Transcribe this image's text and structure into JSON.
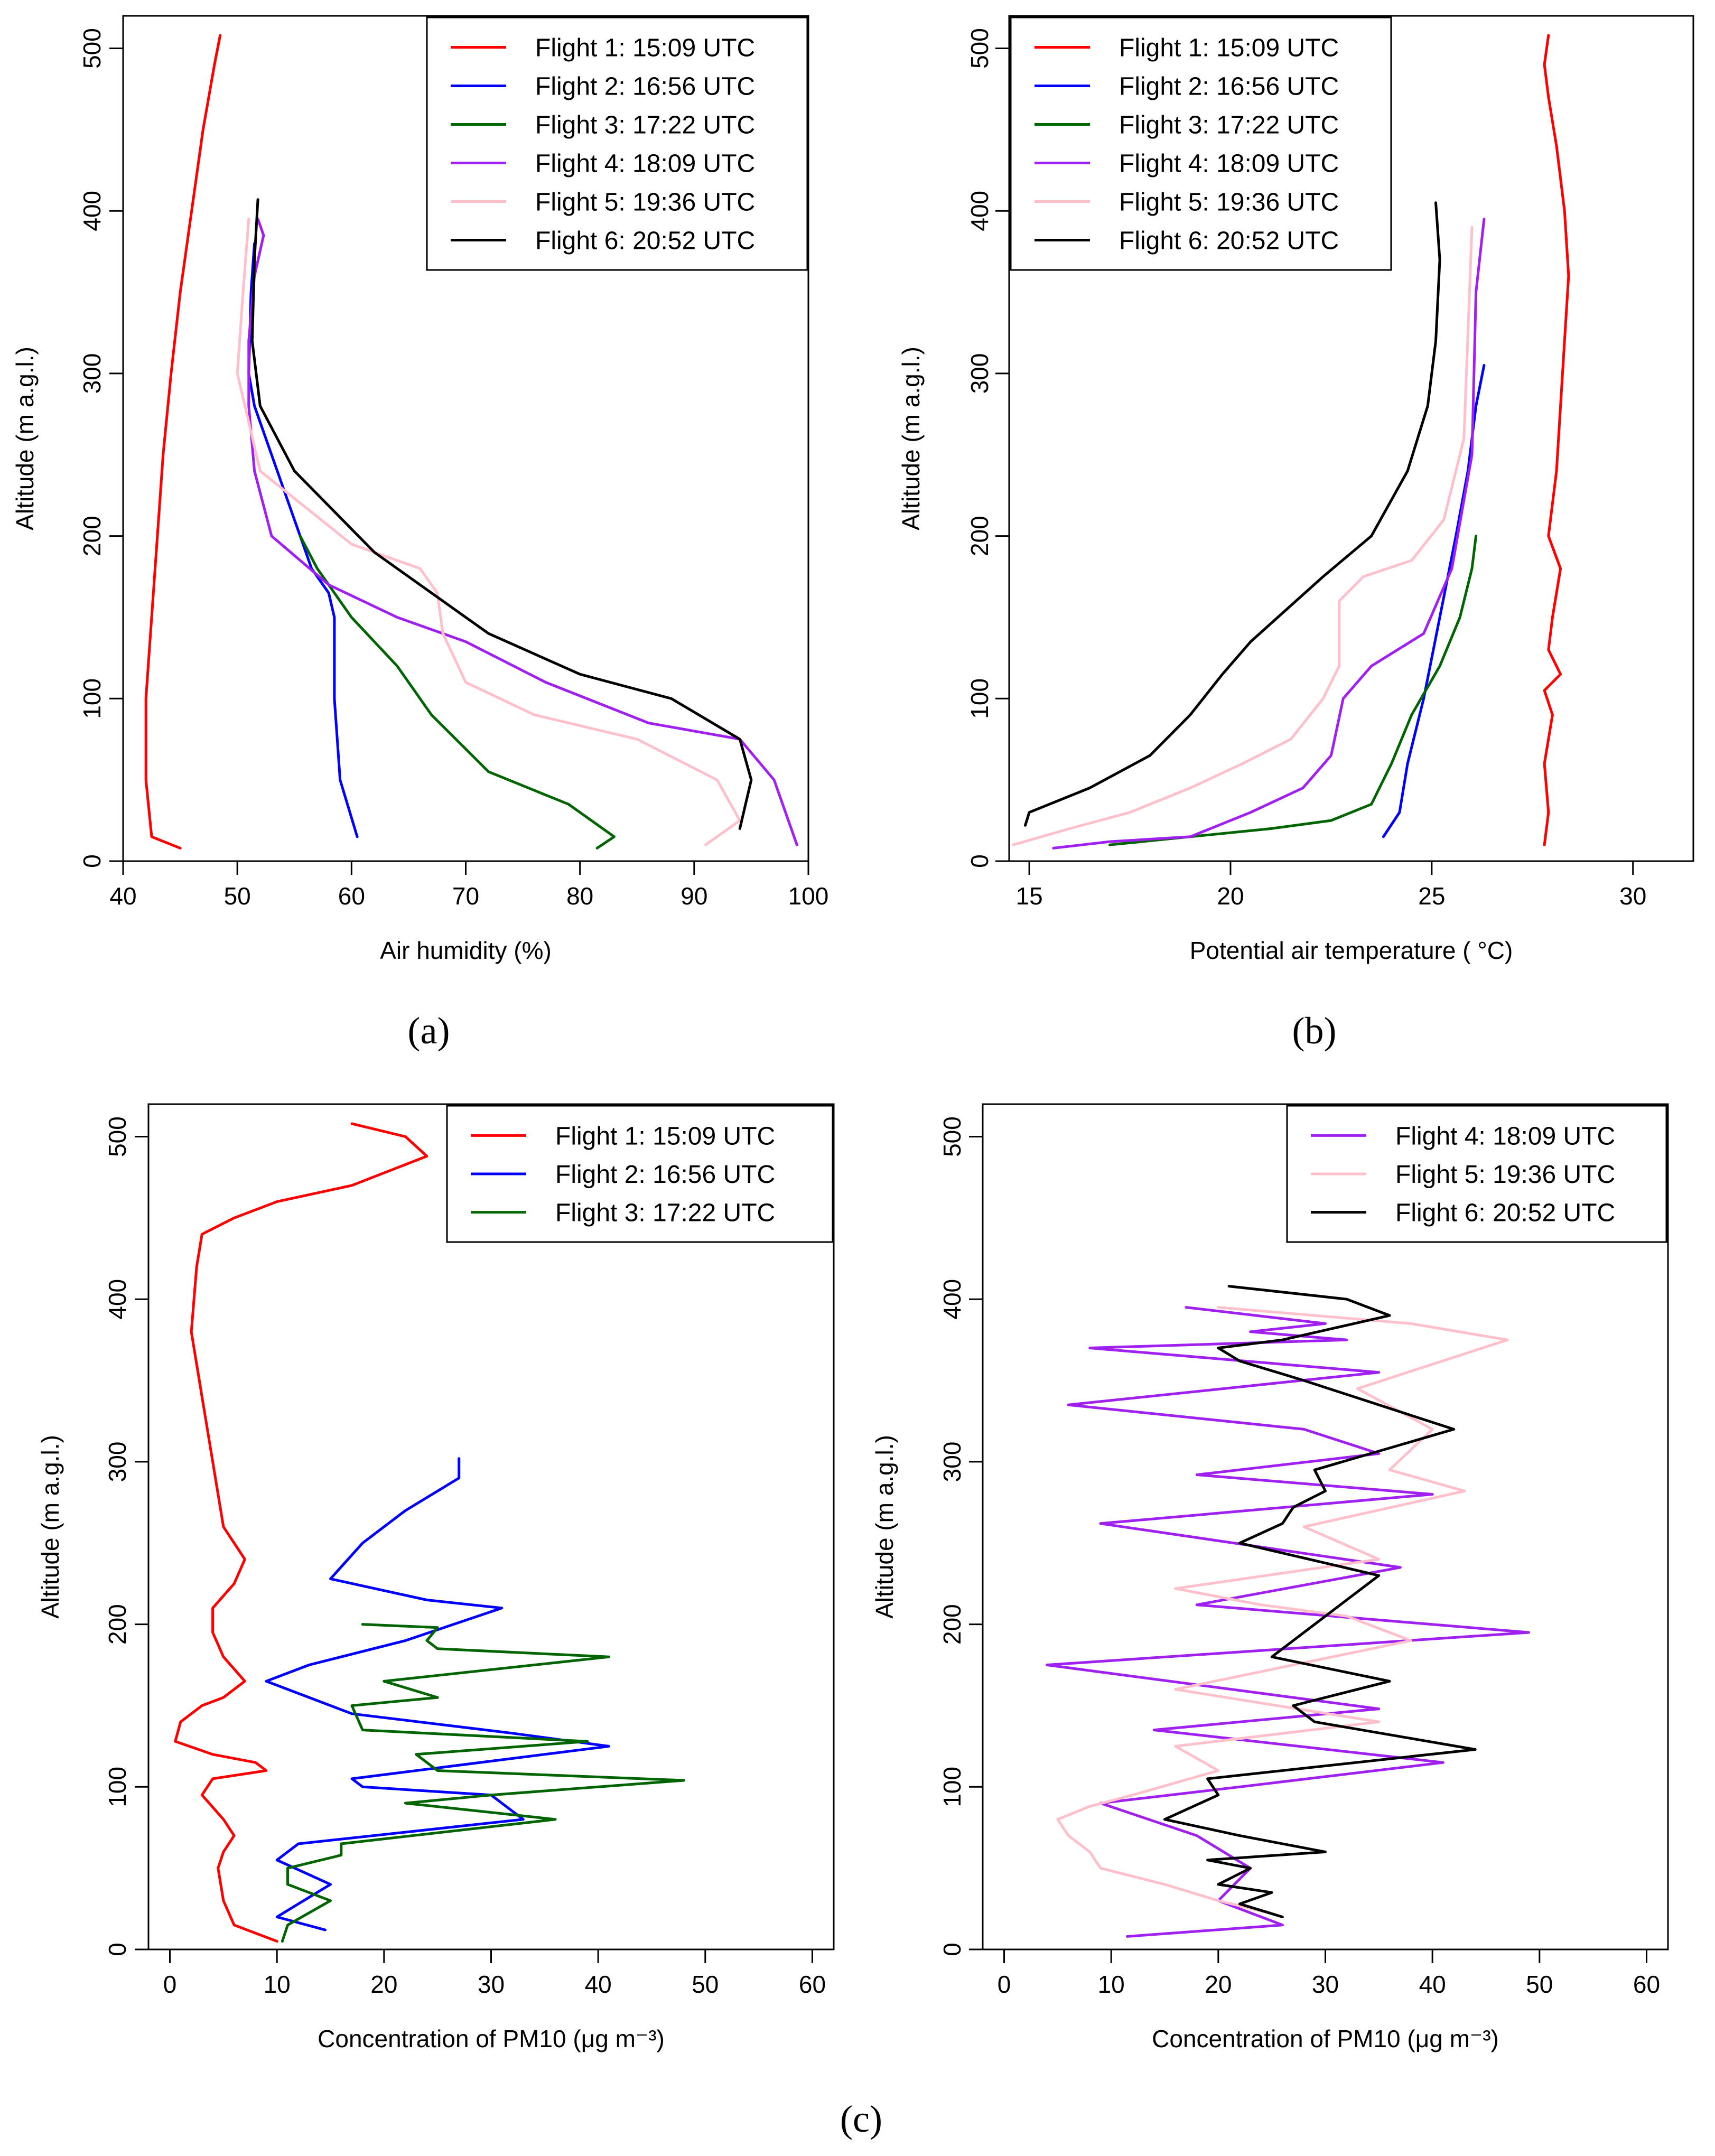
{
  "chart_data": [
    {
      "type": "line",
      "panel_label": "(a)",
      "title": "",
      "xlabel": "Air humidity (%)",
      "ylabel": "Altitude (m a.g.l.)",
      "xlim": [
        40,
        100
      ],
      "ylim": [
        0,
        520
      ],
      "xticks": [
        "40",
        "50",
        "60",
        "70",
        "80",
        "90",
        "100"
      ],
      "yticks": [
        "0",
        "100",
        "200",
        "300",
        "400",
        "500"
      ],
      "legend_position": "top-right",
      "series": [
        {
          "name": "Flight 1: 15:09 UTC",
          "color": "#ff0000",
          "x": [
            45,
            42.5,
            42,
            42,
            42.5,
            43,
            43.5,
            44.2,
            45,
            46,
            47,
            48,
            48.5
          ],
          "y": [
            8,
            15,
            50,
            100,
            150,
            200,
            250,
            300,
            350,
            400,
            450,
            490,
            508
          ]
        },
        {
          "name": "Flight 2: 16:56 UTC",
          "color": "#0000ff",
          "x": [
            60.5,
            59,
            58.5,
            58.5,
            58,
            56.5,
            55.5,
            54.5,
            53.5,
            52.5,
            51.5,
            51,
            51.2,
            51.5
          ],
          "y": [
            15,
            50,
            100,
            150,
            165,
            180,
            200,
            220,
            240,
            260,
            280,
            300,
            350,
            380
          ]
        },
        {
          "name": "Flight 3: 17:22 UTC",
          "color": "#006400",
          "x": [
            81.5,
            83,
            79,
            72,
            67,
            64,
            60,
            57,
            55.5
          ],
          "y": [
            8,
            15,
            35,
            55,
            90,
            120,
            150,
            180,
            200
          ]
        },
        {
          "name": "Flight 4: 18:09 UTC",
          "color": "#a020f0",
          "x": [
            99,
            97,
            94,
            86,
            77,
            70,
            64,
            58,
            53,
            51.5,
            51,
            51,
            51.5,
            52.3,
            51.8
          ],
          "y": [
            10,
            50,
            75,
            85,
            110,
            135,
            150,
            170,
            200,
            240,
            280,
            320,
            360,
            385,
            395
          ]
        },
        {
          "name": "Flight 5: 19:36 UTC",
          "color": "#ffc0cb",
          "x": [
            91,
            94,
            92,
            85,
            76,
            70,
            68,
            67.5,
            66,
            60,
            52,
            50,
            50.5,
            51
          ],
          "y": [
            10,
            25,
            50,
            75,
            90,
            110,
            140,
            165,
            180,
            195,
            240,
            300,
            350,
            395
          ]
        },
        {
          "name": "Flight 6: 20:52 UTC",
          "color": "#000000",
          "x": [
            94,
            95,
            94,
            88,
            80,
            72,
            67,
            62,
            55,
            52,
            51.3,
            51.5,
            51.8
          ],
          "y": [
            20,
            50,
            75,
            100,
            115,
            140,
            165,
            190,
            240,
            280,
            320,
            370,
            407
          ]
        }
      ]
    },
    {
      "type": "line",
      "panel_label": "(b)",
      "title": "",
      "xlabel": "Potential air temperature ( °C)",
      "ylabel": "Altitude (m a.g.l.)",
      "xlim": [
        14.5,
        31.5
      ],
      "ylim": [
        0,
        520
      ],
      "xticks": [
        "15",
        "20",
        "25",
        "30"
      ],
      "yticks": [
        "0",
        "100",
        "200",
        "300",
        "400",
        "500"
      ],
      "legend_position": "top-left",
      "series": [
        {
          "name": "Flight 1: 15:09 UTC",
          "color": "#ff0000",
          "x": [
            27.8,
            27.9,
            27.8,
            28,
            27.8,
            28.2,
            27.9,
            28,
            28.2,
            27.9,
            28.1,
            28.2,
            28.3,
            28.4,
            28.3,
            28.1,
            27.9,
            27.8,
            27.9
          ],
          "y": [
            10,
            30,
            60,
            90,
            105,
            115,
            130,
            150,
            180,
            200,
            240,
            280,
            320,
            360,
            400,
            440,
            470,
            490,
            508
          ]
        },
        {
          "name": "Flight 2: 16:56 UTC",
          "color": "#0000ff",
          "x": [
            23.8,
            24.2,
            24.4,
            24.8,
            25.2,
            25.6,
            25.9,
            26.1,
            26.3
          ],
          "y": [
            15,
            30,
            60,
            100,
            150,
            200,
            240,
            280,
            305
          ]
        },
        {
          "name": "Flight 3: 17:22 UTC",
          "color": "#006400",
          "x": [
            17,
            19,
            21,
            22.5,
            23.5,
            24,
            24.5,
            25.2,
            25.7,
            26,
            26.1
          ],
          "y": [
            10,
            15,
            20,
            25,
            35,
            60,
            90,
            120,
            150,
            180,
            200
          ]
        },
        {
          "name": "Flight 4: 18:09 UTC",
          "color": "#a020f0",
          "x": [
            15.6,
            17,
            19,
            20.5,
            21.8,
            22.5,
            22.8,
            23.5,
            24.8,
            25.5,
            26,
            26.1,
            26.3
          ],
          "y": [
            8,
            12,
            15,
            30,
            45,
            65,
            100,
            120,
            140,
            180,
            250,
            350,
            395
          ]
        },
        {
          "name": "Flight 5: 19:36 UTC",
          "color": "#ffc0cb",
          "x": [
            14.6,
            16,
            17.5,
            19,
            20.3,
            21.5,
            22.3,
            22.7,
            22.7,
            23.3,
            24.5,
            25.3,
            25.8,
            26
          ],
          "y": [
            10,
            20,
            30,
            45,
            60,
            75,
            100,
            120,
            160,
            175,
            185,
            210,
            260,
            390
          ]
        },
        {
          "name": "Flight 6: 20:52 UTC",
          "color": "#000000",
          "x": [
            14.9,
            15,
            16.5,
            18,
            19,
            19.8,
            20.5,
            21.4,
            22.3,
            23.5,
            24.4,
            24.9,
            25.1,
            25.2,
            25.1
          ],
          "y": [
            22,
            30,
            45,
            65,
            90,
            115,
            135,
            155,
            175,
            200,
            240,
            280,
            320,
            370,
            405
          ]
        }
      ]
    },
    {
      "type": "line",
      "panel_label": "",
      "title": "",
      "xlabel": "Concentration of PM10 (μg m⁻³)",
      "ylabel": "Altitude (m a.g.l.)",
      "xlim": [
        -2,
        62
      ],
      "ylim": [
        0,
        520
      ],
      "xticks": [
        "0",
        "10",
        "20",
        "30",
        "40",
        "50",
        "60"
      ],
      "yticks": [
        "0",
        "100",
        "200",
        "300",
        "400",
        "500"
      ],
      "legend_position": "top-right",
      "series": [
        {
          "name": "Flight 1: 15:09 UTC",
          "color": "#ff0000",
          "x": [
            10,
            6,
            5,
            4.5,
            5,
            6,
            5,
            3,
            4,
            9,
            8,
            4,
            0.5,
            1,
            3,
            5,
            7,
            5,
            4,
            4,
            6,
            7,
            5,
            4,
            3,
            2,
            2.5,
            3,
            6,
            10,
            17,
            24,
            22,
            17
          ],
          "y": [
            5,
            15,
            30,
            50,
            60,
            70,
            80,
            95,
            105,
            110,
            115,
            120,
            128,
            140,
            150,
            155,
            165,
            180,
            195,
            210,
            225,
            240,
            260,
            300,
            340,
            380,
            420,
            440,
            450,
            460,
            470,
            488,
            500,
            508
          ]
        },
        {
          "name": "Flight 2: 16:56 UTC",
          "color": "#0000ff",
          "x": [
            14.5,
            10,
            12,
            15,
            10,
            12,
            33,
            30,
            18,
            17,
            41,
            32,
            17,
            9,
            13,
            22,
            31,
            24,
            15,
            18,
            22,
            27,
            27
          ],
          "y": [
            12,
            20,
            28,
            40,
            55,
            65,
            80,
            95,
            100,
            105,
            125,
            133,
            145,
            165,
            175,
            190,
            210,
            215,
            228,
            250,
            270,
            290,
            302
          ]
        },
        {
          "name": "Flight 3: 17:22 UTC",
          "color": "#006400",
          "x": [
            10.5,
            11,
            15,
            11,
            11,
            16,
            16,
            36,
            22,
            30,
            48,
            25,
            23,
            39,
            18,
            17,
            25,
            20,
            41,
            25,
            24,
            25,
            18
          ],
          "y": [
            5,
            15,
            30,
            40,
            50,
            58,
            65,
            80,
            90,
            95,
            104,
            110,
            120,
            128,
            135,
            150,
            155,
            165,
            180,
            185,
            190,
            198,
            200
          ]
        }
      ]
    },
    {
      "type": "line",
      "panel_label": "",
      "title": "",
      "xlabel": "Concentration of PM10 (μg m⁻³)",
      "ylabel": "Altitude (m a.g.l.)",
      "xlim": [
        -2,
        62
      ],
      "ylim": [
        0,
        520
      ],
      "xticks": [
        "0",
        "10",
        "20",
        "30",
        "40",
        "50",
        "60"
      ],
      "yticks": [
        "0",
        "100",
        "200",
        "300",
        "400",
        "500"
      ],
      "legend_position": "top-right",
      "series": [
        {
          "name": "Flight 4: 18:09 UTC",
          "color": "#a020f0",
          "x": [
            11.5,
            26,
            20,
            23,
            18,
            9,
            22,
            41,
            14,
            35,
            4,
            49,
            18,
            37,
            9,
            40,
            18,
            35,
            28,
            6,
            35,
            8,
            32,
            23,
            30,
            17
          ],
          "y": [
            8,
            15,
            30,
            50,
            70,
            90,
            100,
            115,
            135,
            148,
            175,
            195,
            212,
            235,
            262,
            280,
            292,
            305,
            320,
            335,
            355,
            370,
            375,
            380,
            385,
            395
          ]
        },
        {
          "name": "Flight 5: 19:36 UTC",
          "color": "#ffc0cb",
          "x": [
            25,
            20,
            15,
            9,
            8,
            6,
            5,
            8,
            12,
            20,
            16,
            35,
            16,
            38,
            32,
            24,
            16,
            35,
            28,
            43,
            36,
            40,
            33,
            47,
            38,
            20
          ],
          "y": [
            22,
            30,
            40,
            50,
            60,
            70,
            80,
            88,
            95,
            110,
            125,
            140,
            160,
            190,
            205,
            212,
            222,
            240,
            260,
            282,
            295,
            320,
            345,
            375,
            385,
            395
          ]
        },
        {
          "name": "Flight 6: 20:52 UTC",
          "color": "#000000",
          "x": [
            26,
            22,
            25,
            20,
            23,
            19,
            30,
            22,
            15,
            20,
            19,
            44,
            29,
            27,
            36,
            25,
            29,
            35,
            22,
            26,
            27,
            30,
            29,
            42,
            28,
            22,
            20,
            26,
            36,
            32,
            21
          ],
          "y": [
            20,
            28,
            35,
            40,
            50,
            55,
            60,
            70,
            80,
            95,
            105,
            123,
            140,
            150,
            165,
            180,
            200,
            230,
            250,
            262,
            272,
            282,
            295,
            320,
            350,
            362,
            370,
            375,
            390,
            400,
            408
          ]
        }
      ]
    }
  ],
  "panel_label_c": "(c)"
}
